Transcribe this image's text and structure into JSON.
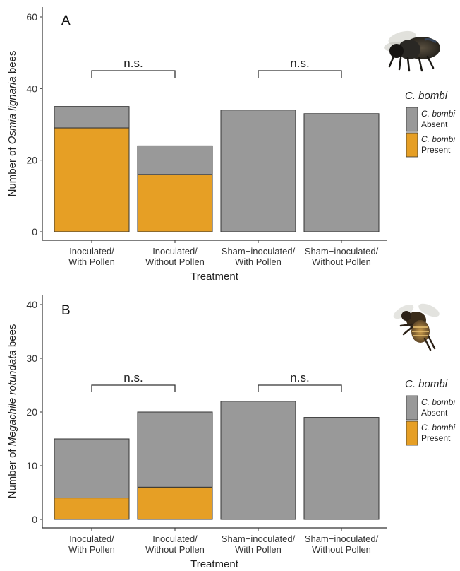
{
  "figure": {
    "legend_title": "C. bombi",
    "legend_items": [
      {
        "line1": "C. bombi",
        "line2": "Absent",
        "color": "#999999"
      },
      {
        "line1": "C. bombi",
        "line2": "Present",
        "color": "#E69F25"
      }
    ],
    "bee_icons": [
      "mason-bee-icon",
      "leafcutter-bee-icon"
    ]
  },
  "chart_data": [
    {
      "type": "bar",
      "stacked": true,
      "panel_label": "A",
      "xlabel": "Treatment",
      "ylabel_prefix": "Number of ",
      "ylabel_species": "Osmia lignaria",
      "ylabel_suffix": " bees",
      "ylim": [
        0,
        60
      ],
      "yticks": [
        0,
        20,
        40,
        60
      ],
      "categories": [
        [
          "Inoculated/",
          "With Pollen"
        ],
        [
          "Inoculated/",
          "Without Pollen"
        ],
        [
          "Sham−inoculated/",
          "With Pollen"
        ],
        [
          "Sham−inoculated/",
          "Without Pollen"
        ]
      ],
      "series": [
        {
          "name": "C. bombi Present",
          "color": "#E69F25",
          "values": [
            29,
            16,
            0,
            0
          ]
        },
        {
          "name": "C. bombi Absent",
          "color": "#999999",
          "values": [
            6,
            8,
            34,
            33
          ]
        }
      ],
      "brackets": [
        {
          "from": 0,
          "to": 1,
          "y": 45,
          "label": "n.s."
        },
        {
          "from": 2,
          "to": 3,
          "y": 45,
          "label": "n.s."
        }
      ],
      "grid": false,
      "legend": "right"
    },
    {
      "type": "bar",
      "stacked": true,
      "panel_label": "B",
      "xlabel": "Treatment",
      "ylabel_prefix": "Number of ",
      "ylabel_species": "Megachile rotundata",
      "ylabel_suffix": " bees",
      "ylim": [
        0,
        40
      ],
      "yticks": [
        0,
        10,
        20,
        30,
        40
      ],
      "categories": [
        [
          "Inoculated/",
          "With Pollen"
        ],
        [
          "Inoculated/",
          "Without Pollen"
        ],
        [
          "Sham−inoculated/",
          "With Pollen"
        ],
        [
          "Sham−inoculated/",
          "Without Pollen"
        ]
      ],
      "series": [
        {
          "name": "C. bombi Present",
          "color": "#E69F25",
          "values": [
            4,
            6,
            0,
            0
          ]
        },
        {
          "name": "C. bombi Absent",
          "color": "#999999",
          "values": [
            11,
            14,
            22,
            19
          ]
        }
      ],
      "brackets": [
        {
          "from": 0,
          "to": 1,
          "y": 25,
          "label": "n.s."
        },
        {
          "from": 2,
          "to": 3,
          "y": 25,
          "label": "n.s."
        }
      ],
      "grid": false,
      "legend": "right"
    }
  ]
}
